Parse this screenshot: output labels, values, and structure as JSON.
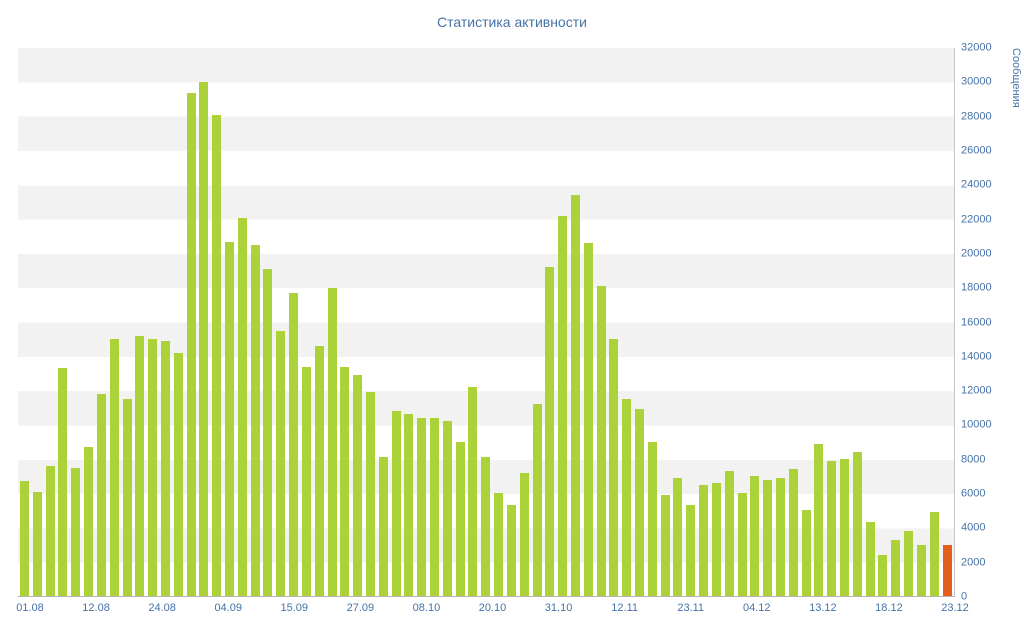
{
  "chart_data": {
    "type": "bar",
    "title": "Статистика активности",
    "xlabel": "",
    "ylabel": "Сообщения",
    "ylim": [
      0,
      32000
    ],
    "grid": "horizontal-bands",
    "legend_position": "none",
    "y_ticks": [
      0,
      2000,
      4000,
      6000,
      8000,
      10000,
      12000,
      14000,
      16000,
      18000,
      20000,
      22000,
      24000,
      26000,
      28000,
      30000,
      32000
    ],
    "x_ticks": [
      "01.08",
      "12.08",
      "24.08",
      "04.09",
      "15.09",
      "27.09",
      "08.10",
      "20.10",
      "31.10",
      "12.11",
      "23.11",
      "04.12",
      "13.12",
      "18.12",
      "23.12"
    ],
    "values": [
      6700,
      6100,
      7600,
      13300,
      7500,
      8700,
      11800,
      15000,
      11500,
      15200,
      15000,
      14900,
      14200,
      29400,
      30000,
      28100,
      20700,
      22100,
      20500,
      19100,
      15500,
      17700,
      13400,
      14600,
      18000,
      13400,
      12900,
      11900,
      8100,
      10800,
      10600,
      10400,
      10400,
      10200,
      9000,
      12200,
      8100,
      6000,
      5300,
      7200,
      11200,
      19200,
      22200,
      23400,
      20600,
      18100,
      15000,
      11500,
      10900,
      9000,
      5900,
      6900,
      5300,
      6500,
      6600,
      7300,
      6000,
      7000,
      6800,
      6900,
      7400,
      5000,
      8900,
      7900,
      8000,
      8400,
      4300,
      2400,
      3300,
      3800,
      3000,
      4900,
      3000
    ],
    "colors": {
      "bar": "#abd239",
      "last_bar": "#e45f1e",
      "grid_band": "#f2f2f2",
      "axis_text": "#4572a7"
    }
  }
}
